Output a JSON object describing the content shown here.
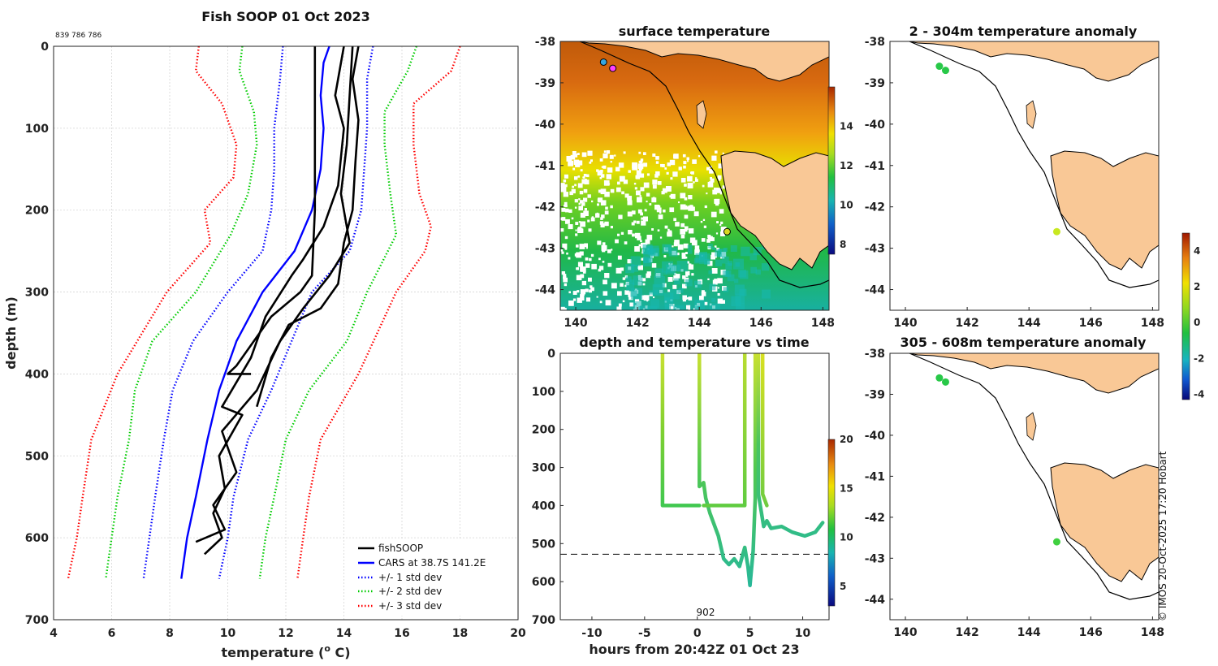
{
  "page": {
    "title": "Fish SOOP 01 Oct 2023",
    "id_text": "839 786 786",
    "credit": "© IMOS 20-Oct-2025 17:20 Hobart"
  },
  "chart_data": [
    {
      "id": "profile",
      "type": "line",
      "title": "Fish SOOP 01 Oct 2023",
      "xlabel": "temperature (°C)",
      "ylabel": "depth (m)",
      "xlim": [
        4,
        20
      ],
      "ylim": [
        700,
        0
      ],
      "xticks": [
        "4",
        "6",
        "8",
        "10",
        "12",
        "14",
        "16",
        "18",
        "20"
      ],
      "yticks": [
        "0",
        "100",
        "200",
        "300",
        "400",
        "500",
        "600",
        "700"
      ],
      "grid": true,
      "legend_position": "bottom-right",
      "legend": [
        "fishSOOP",
        "CARS at 38.7S 141.2E",
        "+/- 1 std dev",
        "+/- 2 std dev",
        "+/- 3 std dev"
      ],
      "series": [
        {
          "name": "CARS at 38.7S 141.2E",
          "color": "#0000ff",
          "style": "solid",
          "points": [
            [
              13.5,
              0
            ],
            [
              13.3,
              20
            ],
            [
              13.2,
              60
            ],
            [
              13.3,
              100
            ],
            [
              13.2,
              150
            ],
            [
              12.9,
              200
            ],
            [
              12.3,
              250
            ],
            [
              11.2,
              300
            ],
            [
              10.3,
              360
            ],
            [
              9.7,
              420
            ],
            [
              9.3,
              480
            ],
            [
              8.9,
              550
            ],
            [
              8.6,
              600
            ],
            [
              8.4,
              650
            ]
          ]
        },
        {
          "name": "-1 std dev",
          "color": "#0000ff",
          "style": "dotted",
          "points": [
            [
              11.9,
              0
            ],
            [
              11.8,
              40
            ],
            [
              11.6,
              100
            ],
            [
              11.6,
              150
            ],
            [
              11.5,
              200
            ],
            [
              11.2,
              250
            ],
            [
              10.0,
              300
            ],
            [
              8.8,
              360
            ],
            [
              8.1,
              420
            ],
            [
              7.8,
              480
            ],
            [
              7.5,
              550
            ],
            [
              7.3,
              600
            ],
            [
              7.1,
              650
            ]
          ]
        },
        {
          "name": "+1 std dev",
          "color": "#0000ff",
          "style": "dotted",
          "points": [
            [
              15.0,
              0
            ],
            [
              14.8,
              40
            ],
            [
              14.8,
              100
            ],
            [
              14.7,
              150
            ],
            [
              14.6,
              200
            ],
            [
              14.2,
              250
            ],
            [
              12.9,
              300
            ],
            [
              12.2,
              360
            ],
            [
              11.5,
              420
            ],
            [
              10.7,
              480
            ],
            [
              10.2,
              550
            ],
            [
              10.0,
              600
            ],
            [
              9.7,
              650
            ]
          ]
        },
        {
          "name": "-2 std dev",
          "color": "#00cc00",
          "style": "dotted",
          "points": [
            [
              10.5,
              0
            ],
            [
              10.4,
              30
            ],
            [
              10.9,
              80
            ],
            [
              11.0,
              120
            ],
            [
              10.7,
              180
            ],
            [
              10.1,
              230
            ],
            [
              8.9,
              300
            ],
            [
              7.4,
              360
            ],
            [
              6.8,
              420
            ],
            [
              6.6,
              480
            ],
            [
              6.2,
              550
            ],
            [
              6.0,
              600
            ],
            [
              5.8,
              650
            ]
          ]
        },
        {
          "name": "+2 std dev",
          "color": "#00cc00",
          "style": "dotted",
          "points": [
            [
              16.5,
              0
            ],
            [
              16.2,
              30
            ],
            [
              15.4,
              80
            ],
            [
              15.4,
              120
            ],
            [
              15.6,
              180
            ],
            [
              15.8,
              230
            ],
            [
              14.8,
              300
            ],
            [
              14.1,
              360
            ],
            [
              12.8,
              420
            ],
            [
              12.0,
              480
            ],
            [
              11.6,
              550
            ],
            [
              11.3,
              600
            ],
            [
              11.1,
              650
            ]
          ]
        },
        {
          "name": "-3 std dev",
          "color": "#ff0000",
          "style": "dotted",
          "points": [
            [
              9.0,
              0
            ],
            [
              8.9,
              30
            ],
            [
              9.8,
              70
            ],
            [
              10.3,
              120
            ],
            [
              10.2,
              160
            ],
            [
              9.2,
              200
            ],
            [
              9.4,
              240
            ],
            [
              7.9,
              300
            ],
            [
              6.2,
              400
            ],
            [
              5.3,
              480
            ],
            [
              5.0,
              550
            ],
            [
              4.8,
              600
            ],
            [
              4.5,
              650
            ]
          ]
        },
        {
          "name": "+3 std dev",
          "color": "#ff0000",
          "style": "dotted",
          "points": [
            [
              18.0,
              0
            ],
            [
              17.7,
              30
            ],
            [
              16.4,
              70
            ],
            [
              16.4,
              120
            ],
            [
              16.6,
              180
            ],
            [
              17.0,
              220
            ],
            [
              16.8,
              250
            ],
            [
              15.8,
              300
            ],
            [
              14.5,
              400
            ],
            [
              13.2,
              480
            ],
            [
              12.8,
              550
            ],
            [
              12.6,
              600
            ],
            [
              12.4,
              650
            ]
          ]
        },
        {
          "name": "fishSOOP",
          "color": "#000000",
          "style": "solid",
          "points": [
            [
              13.0,
              0
            ],
            [
              13.0,
              100
            ],
            [
              13.0,
              200
            ],
            [
              12.9,
              280
            ],
            [
              12.5,
              300
            ],
            [
              11.5,
              330
            ],
            [
              10.3,
              390
            ],
            [
              10.0,
              400
            ],
            [
              10.8,
              400
            ]
          ]
        },
        {
          "name": "fishSOOP",
          "color": "#000000",
          "style": "solid",
          "points": [
            [
              14.0,
              0
            ],
            [
              13.7,
              60
            ],
            [
              14.0,
              100
            ],
            [
              13.8,
              170
            ],
            [
              13.3,
              220
            ],
            [
              12.6,
              260
            ],
            [
              12.2,
              280
            ],
            [
              11.3,
              330
            ],
            [
              10.8,
              380
            ],
            [
              9.8,
              440
            ],
            [
              10.5,
              450
            ],
            [
              9.7,
              500
            ],
            [
              9.9,
              540
            ],
            [
              9.5,
              570
            ],
            [
              9.8,
              600
            ],
            [
              9.2,
              620
            ]
          ]
        },
        {
          "name": "fishSOOP",
          "color": "#000000",
          "style": "solid",
          "points": [
            [
              14.3,
              0
            ],
            [
              14.2,
              60
            ],
            [
              14.1,
              120
            ],
            [
              13.9,
              180
            ],
            [
              14.2,
              240
            ],
            [
              13.5,
              280
            ],
            [
              12.6,
              320
            ],
            [
              11.8,
              360
            ],
            [
              11.0,
              420
            ],
            [
              9.8,
              470
            ],
            [
              10.3,
              520
            ],
            [
              9.5,
              560
            ],
            [
              9.9,
              590
            ],
            [
              8.9,
              605
            ]
          ]
        },
        {
          "name": "fishSOOP",
          "color": "#000000",
          "style": "solid",
          "points": [
            [
              14.5,
              0
            ],
            [
              14.3,
              40
            ],
            [
              14.5,
              90
            ],
            [
              14.4,
              140
            ],
            [
              14.3,
              200
            ],
            [
              14.0,
              240
            ],
            [
              13.8,
              290
            ],
            [
              13.2,
              320
            ],
            [
              12.1,
              340
            ],
            [
              11.5,
              380
            ],
            [
              11.0,
              440
            ]
          ]
        }
      ]
    },
    {
      "id": "surface-map",
      "type": "heatmap",
      "title": "surface temperature",
      "xlim": [
        139.5,
        148.2
      ],
      "ylim": [
        -44.5,
        -38
      ],
      "xticks": [
        "140",
        "142",
        "144",
        "146",
        "148"
      ],
      "yticks": [
        "-38",
        "-39",
        "-40",
        "-41",
        "-42",
        "-43",
        "-44"
      ],
      "colorbar": {
        "range": [
          7.5,
          16
        ],
        "ticks": [
          "8",
          "10",
          "12",
          "14"
        ]
      },
      "markers": [
        {
          "lon": 140.9,
          "lat": -38.5,
          "color": "#35a7e0"
        },
        {
          "lon": 141.2,
          "lat": -38.65,
          "color": "#ff40ff"
        },
        {
          "lon": 144.9,
          "lat": -42.6,
          "color": "#d8d820"
        }
      ]
    },
    {
      "id": "depth-time",
      "type": "scatter",
      "title": "depth and temperature vs time",
      "xlabel": "hours from 20:42Z 01 Oct 23",
      "xlim": [
        -13,
        12.5
      ],
      "ylim": [
        700,
        0
      ],
      "xticks": [
        "-10",
        "-5",
        "0",
        "5",
        "10"
      ],
      "yticks": [
        "0",
        "100",
        "200",
        "300",
        "400",
        "500",
        "600",
        "700"
      ],
      "annotation": "902",
      "colorbar": {
        "range": [
          3,
          20
        ],
        "ticks": [
          "5",
          "10",
          "15",
          "20"
        ]
      },
      "reference_depth": 528
    },
    {
      "id": "anomaly-shallow",
      "type": "scatter",
      "title": "2 - 304m temperature anomaly",
      "xlim": [
        139.5,
        148.2
      ],
      "ylim": [
        -44.5,
        -38
      ],
      "xticks": [
        "140",
        "142",
        "144",
        "146",
        "148"
      ],
      "yticks": [
        "-38",
        "-39",
        "-40",
        "-41",
        "-42",
        "-43",
        "-44"
      ],
      "points": [
        {
          "lon": 141.1,
          "lat": -38.6,
          "anomaly": 0.3
        },
        {
          "lon": 141.3,
          "lat": -38.7,
          "anomaly": 0.3
        },
        {
          "lon": 144.9,
          "lat": -42.6,
          "anomaly": 2.0
        }
      ]
    },
    {
      "id": "anomaly-deep",
      "type": "scatter",
      "title": "305 - 608m temperature anomaly",
      "xlim": [
        139.5,
        148.2
      ],
      "ylim": [
        -44.5,
        -38
      ],
      "xticks": [
        "140",
        "142",
        "144",
        "146",
        "148"
      ],
      "yticks": [
        "-38",
        "-39",
        "-40",
        "-41",
        "-42",
        "-43",
        "-44"
      ],
      "points": [
        {
          "lon": 141.1,
          "lat": -38.6,
          "anomaly": 0.3
        },
        {
          "lon": 141.3,
          "lat": -38.7,
          "anomaly": 0.3
        },
        {
          "lon": 144.9,
          "lat": -42.6,
          "anomaly": 0.5
        }
      ],
      "colorbar": {
        "range": [
          -4.3,
          5
        ],
        "ticks": [
          "-4",
          "-2",
          "0",
          "2",
          "4"
        ]
      }
    }
  ]
}
